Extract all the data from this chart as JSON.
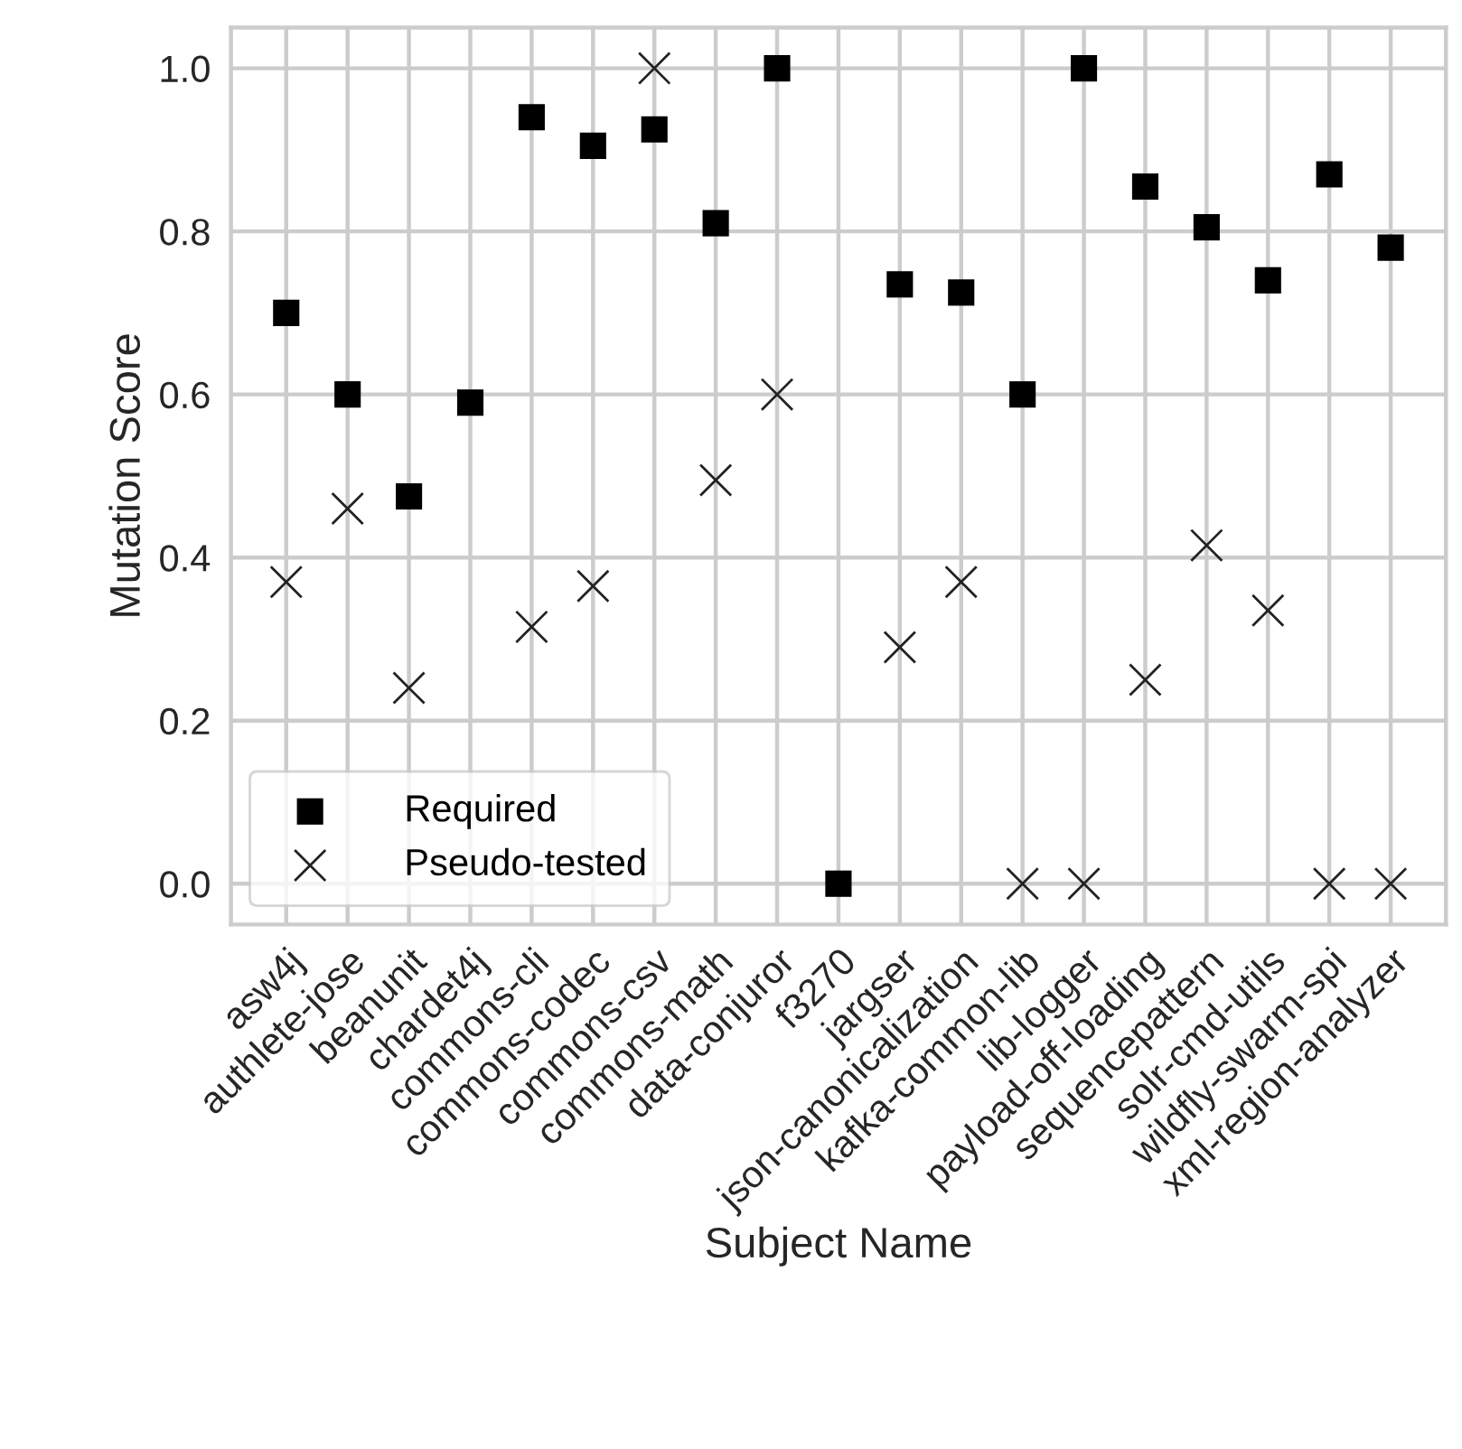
{
  "chart_data": {
    "type": "scatter",
    "xlabel": "Subject Name",
    "ylabel": "Mutation Score",
    "categories": [
      "asw4j",
      "authlete-jose",
      "beanunit",
      "chardet4j",
      "commons-cli",
      "commons-codec",
      "commons-csv",
      "commons-math",
      "data-conjuror",
      "f3270",
      "jargser",
      "json-canonicalization",
      "kafka-common-lib",
      "lib-logger",
      "payload-off-loading",
      "sequencepattern",
      "solr-cmd-utils",
      "wildfly-swarm-spi",
      "xml-region-analyzer"
    ],
    "series": [
      {
        "name": "Required",
        "color": "#000000",
        "marker": "square",
        "values": [
          0.7,
          0.6,
          0.475,
          0.59,
          0.94,
          0.905,
          0.925,
          0.81,
          1.0,
          0.0,
          0.735,
          0.725,
          0.6,
          1.0,
          0.855,
          0.805,
          0.74,
          0.87,
          0.78
        ]
      },
      {
        "name": "Pseudo-tested",
        "color": "#222222",
        "marker": "cross",
        "values": [
          0.37,
          0.46,
          0.24,
          null,
          0.315,
          0.365,
          1.0,
          0.495,
          0.6,
          null,
          0.29,
          0.37,
          0.0,
          0.0,
          0.25,
          0.415,
          0.335,
          0.0,
          0.0
        ]
      }
    ],
    "ylim": [
      -0.05,
      1.05
    ],
    "yticks": [
      {
        "value": 0,
        "label": "0.0"
      },
      0.2,
      0.4,
      0.6,
      0.8,
      {
        "value": 1,
        "label": "1.0"
      }
    ],
    "grid": true,
    "legend": "lower left"
  }
}
